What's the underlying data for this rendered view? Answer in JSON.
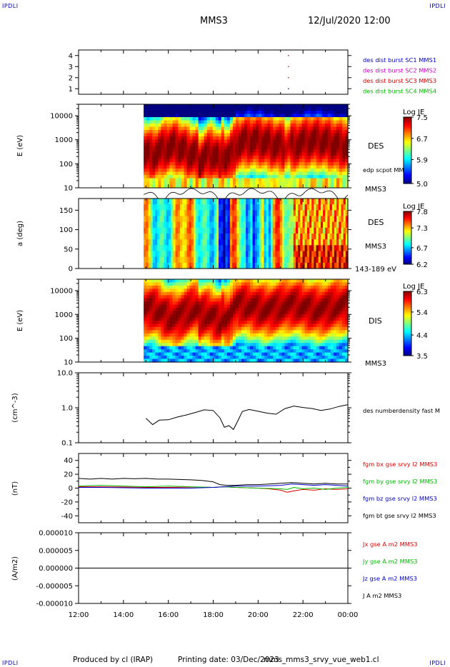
{
  "header": {
    "corner_label": "IPDLI",
    "spacecraft": "MMS3",
    "datetime": "12/Jul/2020 12:00"
  },
  "footer": {
    "produced_by": "Produced by cl (IRAP)",
    "printing_date": "Printing date: 03/Dec/2023",
    "file": "mms_mms3_srvy_vue_web1.cl"
  },
  "time_axis": {
    "ticks": [
      "12:00",
      "14:00",
      "16:00",
      "18:00",
      "20:00",
      "22:00",
      "00:00"
    ],
    "range_hours": [
      12,
      24
    ]
  },
  "chart_data": [
    {
      "type": "scatter",
      "panel": "burst availability",
      "ylim": [
        0.5,
        4.5
      ],
      "ticks": [
        "1",
        "2",
        "3",
        "4"
      ],
      "legend": [
        {
          "label": "des dist burst SC1 MMS1",
          "color": "#0000cc"
        },
        {
          "label": "des dist burst SC2 MMS2",
          "color": "#cc00cc"
        },
        {
          "label": "des dist burst SC3 MMS3",
          "color": "#cc0000"
        },
        {
          "label": "des dist burst SC4 MMS4",
          "color": "#00bb00"
        }
      ],
      "points": [
        {
          "x": 21.35,
          "y": 4,
          "color": "#cc0000"
        },
        {
          "x": 21.35,
          "y": 3,
          "color": "#cc0000"
        },
        {
          "x": 21.35,
          "y": 2,
          "color": "#cc0000"
        },
        {
          "x": 21.35,
          "y": 1,
          "color": "#0000cc"
        }
      ]
    },
    {
      "type": "heatmap",
      "panel": "DES energy spectrogram",
      "ylabel": "E (eV)",
      "scale": "log",
      "ylim": [
        10,
        30000
      ],
      "ticks": [
        "10000",
        "1000",
        "100",
        "10"
      ],
      "data_start_hour": 14.9,
      "right_labels": [
        "DES",
        "edp scpot MMS3",
        "MMS3"
      ],
      "colorbar": {
        "title": "Log JE",
        "ticks": [
          "7.5",
          "6.7",
          "5.9",
          "5.0"
        ],
        "min": 5.0,
        "max": 7.5
      }
    },
    {
      "type": "heatmap",
      "panel": "DES pitch angle",
      "ylabel": "a (deg)",
      "ylim": [
        0,
        180
      ],
      "ticks": [
        "150",
        "100",
        "50",
        "0"
      ],
      "data_start_hour": 14.9,
      "right_labels": [
        "DES",
        "MMS3",
        "143-189 eV"
      ],
      "colorbar": {
        "title": "Log JE",
        "ticks": [
          "7.8",
          "7.3",
          "6.7",
          "6.2"
        ],
        "min": 6.2,
        "max": 7.8
      }
    },
    {
      "type": "heatmap",
      "panel": "DIS energy spectrogram",
      "ylabel": "E (eV)",
      "scale": "log",
      "ylim": [
        10,
        30000
      ],
      "ticks": [
        "10000",
        "1000",
        "100",
        "10"
      ],
      "data_start_hour": 14.9,
      "right_labels": [
        "DIS",
        "MMS3"
      ],
      "colorbar": {
        "title": "Log JE",
        "ticks": [
          "6.3",
          "5.4",
          "4.4",
          "3.5"
        ],
        "min": 3.5,
        "max": 6.3
      }
    },
    {
      "type": "line",
      "panel": "electron density",
      "ylabel": "(cm^-3)",
      "scale": "log",
      "ylim": [
        0.1,
        10
      ],
      "ticks": [
        "10.0",
        "1.0",
        "0.1"
      ],
      "series": [
        {
          "name": "des numberdensity fast M",
          "color": "#000000",
          "x": [
            15.0,
            15.3,
            15.6,
            16.0,
            16.4,
            16.8,
            17.2,
            17.6,
            18.0,
            18.3,
            18.5,
            18.7,
            18.9,
            19.1,
            19.3,
            19.6,
            20.0,
            20.4,
            20.8,
            21.2,
            21.6,
            22.0,
            22.4,
            22.8,
            23.2,
            23.6,
            24.0
          ],
          "y": [
            0.5,
            0.3,
            0.4,
            0.45,
            0.6,
            0.7,
            0.75,
            0.8,
            0.75,
            0.5,
            0.3,
            0.35,
            0.25,
            0.4,
            0.7,
            0.85,
            0.85,
            0.8,
            0.7,
            0.9,
            1.0,
            0.95,
            1.0,
            0.95,
            1.0,
            1.05,
            1.1
          ]
        }
      ]
    },
    {
      "type": "line",
      "panel": "magnetic field",
      "ylabel": "(nT)",
      "ylim": [
        -50,
        50
      ],
      "ticks": [
        "40",
        "20",
        "0",
        "-20",
        "-40"
      ],
      "series": [
        {
          "name": "fgm bx gse srvy l2 MMS3",
          "color": "#dd0000",
          "x": [
            12,
            13,
            14,
            15,
            16,
            17,
            18,
            18.5,
            19,
            20,
            20.5,
            21,
            21.3,
            21.6,
            22,
            22.5,
            23,
            23.5,
            24
          ],
          "y": [
            2,
            2,
            1.5,
            1,
            1,
            1.5,
            1,
            2,
            1,
            0,
            -1,
            -3,
            -6,
            -4,
            -2,
            -3,
            -1,
            -2,
            -1
          ]
        },
        {
          "name": "fgm by gse srvy l2 MMS3",
          "color": "#00bb00",
          "x": [
            12,
            13,
            14,
            15,
            16,
            17,
            18,
            18.5,
            19,
            20,
            21,
            21.3,
            21.6,
            22,
            22.5,
            23,
            23.5,
            24
          ],
          "y": [
            3,
            4,
            3,
            2,
            3,
            2,
            1,
            2,
            1,
            0,
            -1,
            -2,
            1,
            -1,
            0,
            -2,
            0,
            1
          ]
        },
        {
          "name": "fgm bz gse srvy l2 MMS3",
          "color": "#0000cc",
          "x": [
            12,
            13,
            14,
            15,
            16,
            17,
            18,
            18.5,
            19,
            20,
            21,
            21.5,
            22,
            22.5,
            23,
            23.5,
            24
          ],
          "y": [
            1,
            1,
            0.5,
            0,
            0,
            0,
            1,
            2,
            3,
            3,
            4,
            6,
            5,
            4,
            5,
            4,
            3
          ]
        },
        {
          "name": "fgm bt gse srvy l2 MMS3",
          "color": "#000000",
          "x": [
            12,
            12.5,
            13,
            13.5,
            14,
            14.5,
            15,
            15.5,
            16,
            16.5,
            17,
            17.5,
            18,
            18.3,
            18.6,
            19,
            19.5,
            20,
            20.5,
            21,
            21.5,
            22,
            22.5,
            23,
            23.5,
            24
          ],
          "y": [
            14,
            13,
            14,
            13,
            14,
            13.5,
            14,
            13,
            13,
            12.5,
            12,
            11,
            9,
            5,
            4,
            4,
            5,
            5,
            6,
            7,
            8,
            7,
            6,
            7,
            6,
            6
          ]
        }
      ]
    },
    {
      "type": "line",
      "panel": "current density",
      "ylabel": "(A/m2)",
      "ylim": [
        -1e-05,
        1e-05
      ],
      "ticks": [
        "0.000010",
        "0.000005",
        "0.000000",
        "-0.000005",
        "-0.000010"
      ],
      "series": [
        {
          "name": "Jx gse A m2 MMS3",
          "color": "#dd0000",
          "x": [
            12,
            24
          ],
          "y": [
            0,
            0
          ]
        },
        {
          "name": "Jy gse A m2 MMS3",
          "color": "#00bb00",
          "x": [
            12,
            24
          ],
          "y": [
            0,
            0
          ]
        },
        {
          "name": "Jz gse A m2 MMS3",
          "color": "#0000cc",
          "x": [
            12,
            24
          ],
          "y": [
            0,
            0
          ]
        },
        {
          "name": "J A m2 MMS3",
          "color": "#000000",
          "x": [
            12,
            24
          ],
          "y": [
            0,
            0
          ]
        }
      ]
    }
  ]
}
